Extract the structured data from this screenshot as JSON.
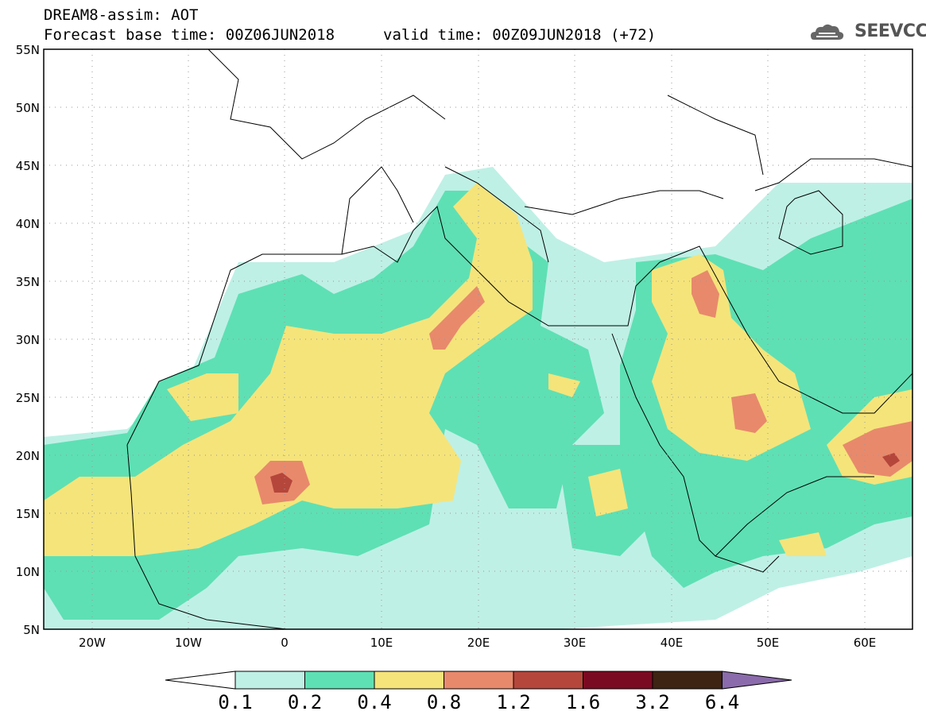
{
  "header": {
    "title": "DREAM8-assim: AOT",
    "base_time": "Forecast base time: 00Z06JUN2018",
    "valid_time": "valid time: 00Z09JUN2018 (+72)",
    "logo_text": "SEEVCCC"
  },
  "map": {
    "variable": "AOT",
    "lat_range": [
      5,
      55
    ],
    "lon_range": [
      -25,
      65
    ],
    "lat_labels": [
      "55N",
      "50N",
      "45N",
      "40N",
      "35N",
      "30N",
      "25N",
      "20N",
      "15N",
      "10N",
      "5N"
    ],
    "lon_labels": [
      "20W",
      "10W",
      "0",
      "10E",
      "20E",
      "30E",
      "40E",
      "50E",
      "60E"
    ]
  },
  "colorbar": {
    "levels": [
      "0.1",
      "0.2",
      "0.4",
      "0.8",
      "1.2",
      "1.6",
      "3.2",
      "6.4"
    ],
    "colors": [
      "#ffffff",
      "#bff0e5",
      "#5ee0b4",
      "#f5e47a",
      "#e8896c",
      "#b5463b",
      "#7a0a22",
      "#3e2413",
      "#8b6bab"
    ]
  }
}
